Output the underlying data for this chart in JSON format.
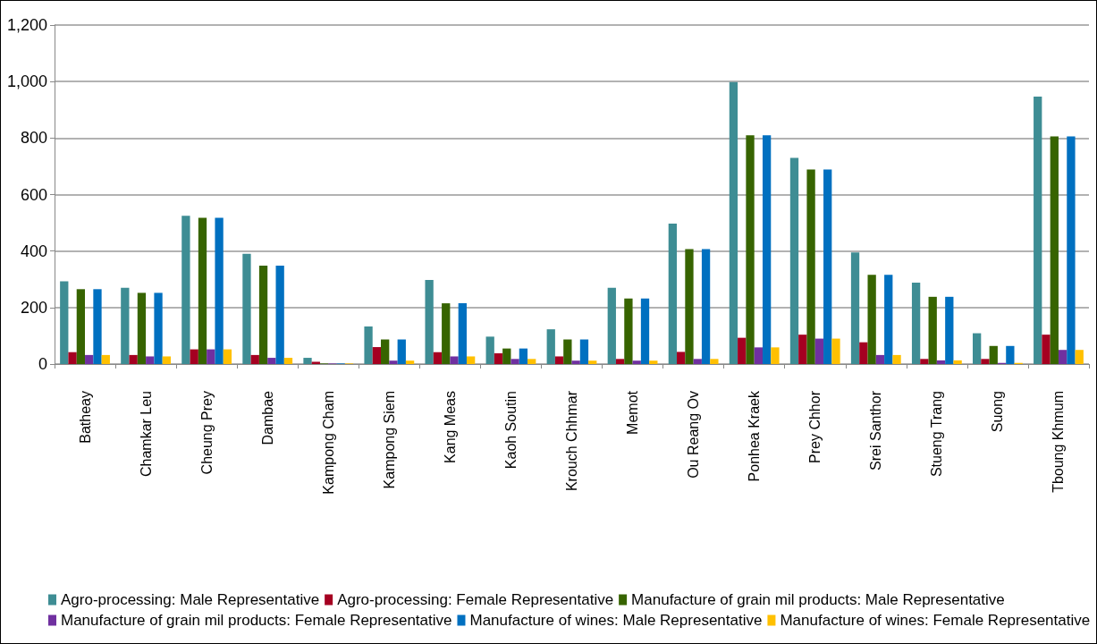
{
  "chart_data": {
    "type": "bar",
    "categories": [
      "Batheay",
      "Chamkar Leu",
      "Cheung Prey",
      "Dambae",
      "Kampong Cham",
      "Kampong Siem",
      "Kang Meas",
      "Kaoh Soutin",
      "Krouch Chhmar",
      "Memot",
      "Ou Reang Ov",
      "Ponhea Kraek",
      "Prey Chhor",
      "Srei Santhor",
      "Stueng Trang",
      "Suong",
      "Tboung Khmum"
    ],
    "series": [
      {
        "name": "Agro-processing: Male Representative",
        "color": "#3e8d94",
        "values": [
          293,
          270,
          525,
          390,
          22,
          133,
          298,
          97,
          123,
          270,
          497,
          998,
          730,
          395,
          288,
          109,
          947
        ]
      },
      {
        "name": "Agro-processing: Female Representative",
        "color": "#a50021",
        "values": [
          42,
          32,
          52,
          32,
          8,
          60,
          42,
          38,
          27,
          18,
          43,
          93,
          104,
          77,
          18,
          18,
          104
        ]
      },
      {
        "name": "Manufacture of grain mil products: Male Representative",
        "color": "#376400",
        "values": [
          265,
          252,
          518,
          348,
          2,
          87,
          215,
          55,
          87,
          232,
          407,
          810,
          689,
          316,
          238,
          64,
          806
        ]
      },
      {
        "name": "Manufacture of grain mil products: Female Representative",
        "color": "#7030a0",
        "values": [
          32,
          27,
          52,
          22,
          2,
          12,
          27,
          18,
          12,
          12,
          18,
          59,
          90,
          32,
          13,
          4,
          50
        ]
      },
      {
        "name": "Manufacture of wines: Male Representative",
        "color": "#0070c0",
        "values": [
          265,
          252,
          518,
          348,
          2,
          87,
          215,
          55,
          87,
          232,
          407,
          810,
          689,
          316,
          238,
          64,
          806
        ]
      },
      {
        "name": "Manufacture of wines: Female Representative",
        "color": "#ffc000",
        "values": [
          32,
          27,
          52,
          22,
          2,
          12,
          27,
          18,
          12,
          12,
          18,
          59,
          90,
          32,
          13,
          4,
          50
        ]
      }
    ],
    "ylim": [
      0,
      1200
    ],
    "yticks": [
      0,
      {
        "value": 200,
        "label": "200"
      },
      {
        "value": 400,
        "label": "400"
      },
      {
        "value": 600,
        "label": "600"
      },
      {
        "value": 800,
        "label": "800"
      },
      {
        "value": 1000,
        "label": "1,000"
      },
      {
        "value": 1200,
        "label": "1,200"
      }
    ],
    "grid": "y",
    "legend": "bottom"
  }
}
